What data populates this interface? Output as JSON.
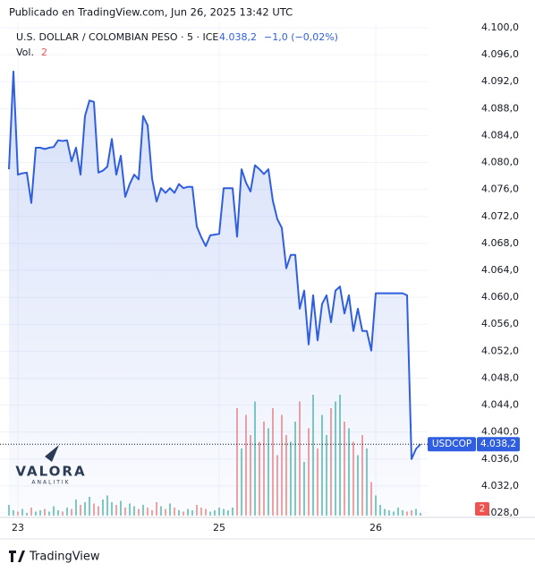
{
  "chart_data": {
    "type": "area",
    "published": "Publicado en TradingView.com, Jun 26, 2025 13:42 UTC",
    "title": "U.S. DOLLAR / COLOMBIAN PESO · 5 · ICE",
    "last_price_label": "4.038,2",
    "change_label": "−1,0 (−0,02%)",
    "volume_label": "Vol.",
    "symbol": "USDCOP",
    "brand": "TradingView",
    "watermark": "VALORA",
    "watermark_sub": "ANALITIK",
    "color": "#2f5fe0",
    "up_color": "#7fcbc3",
    "down_color": "#f3a3a1",
    "grid": true,
    "ylim": [
      4028,
      4100
    ],
    "yticks": [
      {
        "value": 4028,
        "label": "4.028,0"
      },
      {
        "value": 4032,
        "label": "4.032,0"
      },
      {
        "value": 4036,
        "label": "4.036,0"
      },
      {
        "value": 4040,
        "label": "4.040,0"
      },
      {
        "value": 4044,
        "label": "4.044,0"
      },
      {
        "value": 4048,
        "label": "4.048,0"
      },
      {
        "value": 4052,
        "label": "4.052,0"
      },
      {
        "value": 4056,
        "label": "4.056,0"
      },
      {
        "value": 4060,
        "label": "4.060,0"
      },
      {
        "value": 4064,
        "label": "4.064,0"
      },
      {
        "value": 4068,
        "label": "4.068,0"
      },
      {
        "value": 4072,
        "label": "4.072,0"
      },
      {
        "value": 4076,
        "label": "4.076,0"
      },
      {
        "value": 4080,
        "label": "4.080,0"
      },
      {
        "value": 4084,
        "label": "4.084,0"
      },
      {
        "value": 4088,
        "label": "4.088,0"
      },
      {
        "value": 4092,
        "label": "4.092,0"
      },
      {
        "value": 4096,
        "label": "4.096,0"
      },
      {
        "value": 4100,
        "label": "4.100,0"
      }
    ],
    "xlim": [
      0,
      92
    ],
    "xticks": [
      {
        "value": 2,
        "label": "23"
      },
      {
        "value": 47,
        "label": "25"
      },
      {
        "value": 82,
        "label": "26"
      }
    ],
    "values": [
      4079.0,
      4093.5,
      4078.2,
      4078.4,
      4078.5,
      4074.0,
      4082.2,
      4082.2,
      4082.0,
      4082.2,
      4082.3,
      4083.3,
      4083.2,
      4083.3,
      4080.2,
      4082.2,
      4078.2,
      4086.9,
      4089.2,
      4089.0,
      4078.5,
      4078.8,
      4079.4,
      4083.5,
      4078.2,
      4081.0,
      4074.9,
      4076.8,
      4078.2,
      4077.5,
      4086.9,
      4085.5,
      4077.6,
      4074.2,
      4076.2,
      4075.5,
      4076.2,
      4075.5,
      4076.8,
      4076.2,
      4076.4,
      4076.4,
      4070.5,
      4068.9,
      4067.6,
      4069.2,
      4069.3,
      4069.4,
      4076.2,
      4076.2,
      4076.2,
      4069.0,
      4079.0,
      4077.0,
      4075.7,
      4079.6,
      4079.0,
      4078.3,
      4079.0,
      4074.3,
      4071.6,
      4070.3,
      4064.3,
      4066.3,
      4066.3,
      4058.3,
      4061.0,
      4053.0,
      4060.3,
      4053.6,
      4059.0,
      4060.3,
      4056.3,
      4061.0,
      4061.6,
      4057.6,
      4060.3,
      4055.0,
      4058.3,
      4055.0,
      4055.0,
      4052.1,
      4060.6,
      4060.6,
      4060.6,
      4060.6,
      4060.6,
      4060.6,
      4060.6,
      4060.3,
      4036.0,
      4037.5,
      4038.2
    ],
    "volume_lim": [
      0,
      100
    ],
    "volume": [
      8,
      4,
      3,
      5,
      2,
      6,
      3,
      4,
      5,
      3,
      7,
      4,
      3,
      6,
      5,
      12,
      8,
      10,
      14,
      9,
      7,
      12,
      15,
      10,
      8,
      11,
      6,
      9,
      7,
      5,
      8,
      6,
      4,
      10,
      7,
      5,
      9,
      6,
      4,
      3,
      5,
      4,
      8,
      6,
      5,
      3,
      4,
      6,
      5,
      4,
      6,
      80,
      50,
      75,
      60,
      85,
      55,
      70,
      65,
      80,
      45,
      75,
      60,
      55,
      70,
      85,
      40,
      65,
      90,
      50,
      75,
      60,
      80,
      85,
      90,
      70,
      65,
      55,
      45,
      60,
      50,
      25,
      15,
      8,
      5,
      4,
      3,
      6,
      4,
      3,
      4,
      5,
      2
    ]
  }
}
